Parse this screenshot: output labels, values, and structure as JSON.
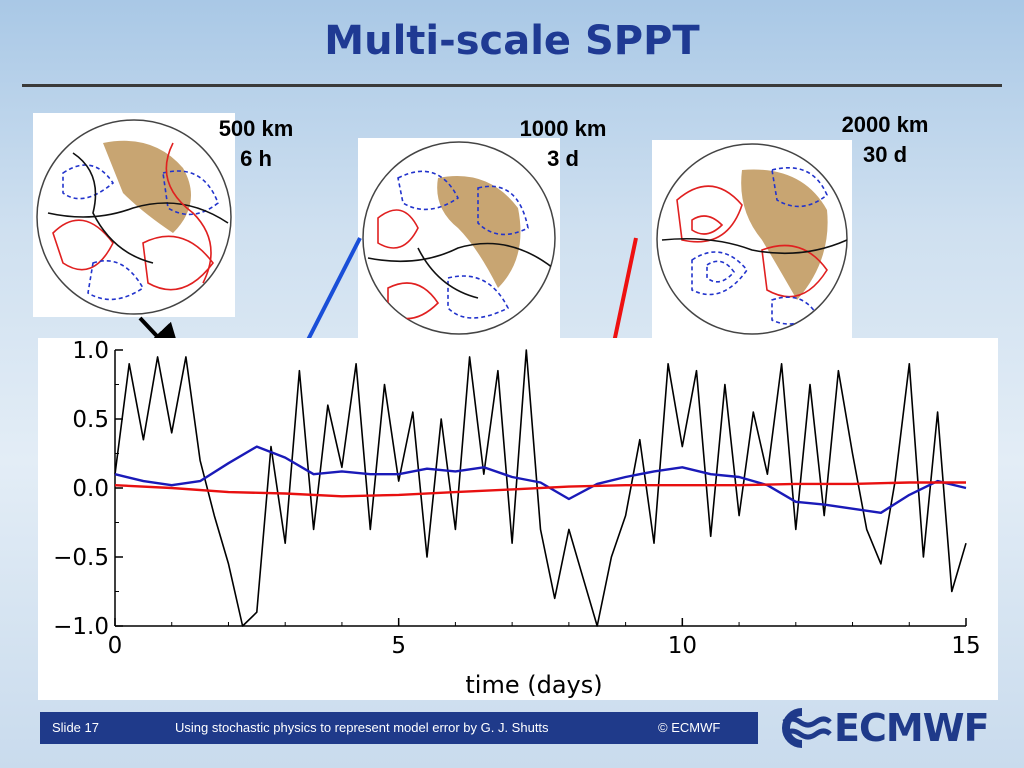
{
  "slide": {
    "title": "Multi-scale SPPT",
    "footer": {
      "slide_number": "Slide 17",
      "subtitle": "Using stochastic physics to represent model error  by G. J. Shutts",
      "copyright": "© ECMWF"
    },
    "logo_text": "ECMWF",
    "colors": {
      "title": "#1f3a93",
      "footer_bg": "#1f3a8a",
      "blue_arrow": "#1a4fd8",
      "red_arrow": "#ee1111"
    }
  },
  "globes": [
    {
      "scale": "500 km",
      "time": "6 h"
    },
    {
      "scale": "1000 km",
      "time": "3 d"
    },
    {
      "scale": "2000 km",
      "time": "30 d"
    }
  ],
  "chart_data": {
    "type": "line",
    "title": "",
    "xlabel": "time (days)",
    "ylabel": "",
    "xlim": [
      0,
      15
    ],
    "ylim": [
      -1.0,
      1.0
    ],
    "xticks": [
      "0",
      "5",
      "10",
      "15"
    ],
    "yticks": [
      "1.0",
      "0.5",
      "0.0",
      "−0.5",
      "−1.0"
    ],
    "grid": false,
    "series": [
      {
        "color": "#000000",
        "x": [
          0,
          0.25,
          0.5,
          0.75,
          1,
          1.25,
          1.5,
          1.75,
          2,
          2.25,
          2.5,
          2.75,
          3,
          3.25,
          3.5,
          3.75,
          4,
          4.25,
          4.5,
          4.75,
          5,
          5.25,
          5.5,
          5.75,
          6,
          6.25,
          6.5,
          6.75,
          7,
          7.25,
          7.5,
          7.75,
          8,
          8.25,
          8.5,
          8.75,
          9,
          9.25,
          9.5,
          9.75,
          10,
          10.25,
          10.5,
          10.75,
          11,
          11.25,
          11.5,
          11.75,
          12,
          12.25,
          12.5,
          12.75,
          13,
          13.25,
          13.5,
          13.75,
          14,
          14.25,
          14.5,
          14.75,
          15
        ],
        "y": [
          0.1,
          0.9,
          0.35,
          0.95,
          0.4,
          0.95,
          0.2,
          -0.2,
          -0.55,
          -1.0,
          -0.9,
          0.3,
          -0.4,
          0.85,
          -0.3,
          0.6,
          0.15,
          0.9,
          -0.3,
          0.75,
          0.05,
          0.55,
          -0.5,
          0.5,
          -0.3,
          0.95,
          0.1,
          0.85,
          -0.4,
          1.0,
          -0.3,
          -0.8,
          -0.3,
          -0.65,
          -1.0,
          -0.5,
          -0.2,
          0.35,
          -0.4,
          0.9,
          0.3,
          0.85,
          -0.35,
          0.75,
          -0.2,
          0.55,
          0.1,
          0.9,
          -0.3,
          0.75,
          -0.2,
          0.85,
          0.25,
          -0.3,
          -0.55,
          0.05,
          0.9,
          -0.5,
          0.55,
          -0.75,
          -0.4
        ]
      },
      {
        "color": "#1a1ab8",
        "x": [
          0,
          0.5,
          1,
          1.5,
          2,
          2.5,
          3,
          3.5,
          4,
          4.5,
          5,
          5.5,
          6,
          6.5,
          7,
          7.5,
          8,
          8.5,
          9,
          9.5,
          10,
          10.5,
          11,
          11.5,
          12,
          12.5,
          13,
          13.5,
          14,
          14.5,
          15
        ],
        "y": [
          0.1,
          0.05,
          0.02,
          0.05,
          0.18,
          0.3,
          0.22,
          0.1,
          0.12,
          0.1,
          0.1,
          0.14,
          0.12,
          0.15,
          0.08,
          0.04,
          -0.08,
          0.03,
          0.08,
          0.12,
          0.15,
          0.1,
          0.08,
          0.02,
          -0.1,
          -0.12,
          -0.15,
          -0.18,
          -0.05,
          0.05,
          0.0
        ]
      },
      {
        "color": "#e81010",
        "x": [
          0,
          1,
          2,
          3,
          4,
          5,
          6,
          7,
          8,
          9,
          10,
          11,
          12,
          13,
          14,
          15
        ],
        "y": [
          0.02,
          0.0,
          -0.03,
          -0.04,
          -0.06,
          -0.05,
          -0.03,
          -0.01,
          0.01,
          0.02,
          0.02,
          0.02,
          0.03,
          0.03,
          0.04,
          0.04
        ]
      }
    ]
  }
}
